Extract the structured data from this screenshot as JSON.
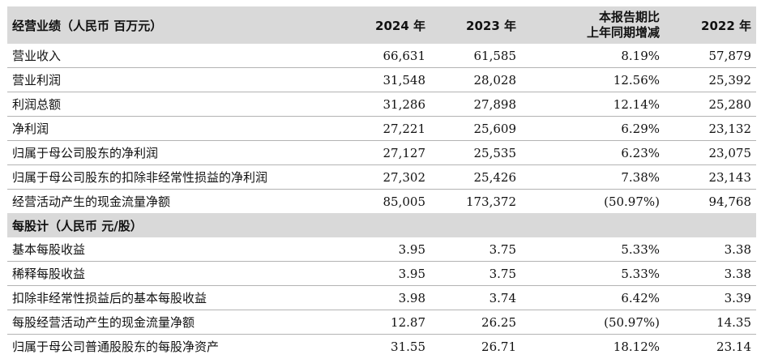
{
  "header": {
    "title": "经营业绩（人民币 百万元）",
    "col_2024": "2024 年",
    "col_2023": "2023 年",
    "col_change_line1": "本报告期比",
    "col_change_line2": "上年同期增减",
    "col_2022": "2022 年"
  },
  "operating_rows": [
    {
      "label": "营业收入",
      "v2024": "66,631",
      "v2023": "61,585",
      "change": "8.19%",
      "v2022": "57,879"
    },
    {
      "label": "营业利润",
      "v2024": "31,548",
      "v2023": "28,028",
      "change": "12.56%",
      "v2022": "25,392"
    },
    {
      "label": "利润总额",
      "v2024": "31,286",
      "v2023": "27,898",
      "change": "12.14%",
      "v2022": "25,280"
    },
    {
      "label": "净利润",
      "v2024": "27,221",
      "v2023": "25,609",
      "change": "6.29%",
      "v2022": "23,132"
    },
    {
      "label": "归属于母公司股东的净利润",
      "v2024": "27,127",
      "v2023": "25,535",
      "change": "6.23%",
      "v2022": "23,075"
    },
    {
      "label": "归属于母公司股东的扣除非经常性损益的净利润",
      "v2024": "27,302",
      "v2023": "25,426",
      "change": "7.38%",
      "v2022": "23,143"
    },
    {
      "label": "经营活动产生的现金流量净额",
      "v2024": "85,005",
      "v2023": "173,372",
      "change": "(50.97%)",
      "v2022": "94,768"
    }
  ],
  "per_share_section": {
    "title": "每股计（人民币 元/股）"
  },
  "per_share_rows": [
    {
      "label": "基本每股收益",
      "v2024": "3.95",
      "v2023": "3.75",
      "change": "5.33%",
      "v2022": "3.38"
    },
    {
      "label": "稀释每股收益",
      "v2024": "3.95",
      "v2023": "3.75",
      "change": "5.33%",
      "v2022": "3.38"
    },
    {
      "label": "扣除非经常性损益后的基本每股收益",
      "v2024": "3.98",
      "v2023": "3.74",
      "change": "6.42%",
      "v2022": "3.39"
    },
    {
      "label": "每股经营活动产生的现金流量净额",
      "v2024": "12.87",
      "v2023": "26.25",
      "change": "(50.97%)",
      "v2022": "14.35"
    },
    {
      "label": "归属于母公司普通股股东的每股净资产",
      "v2024": "31.55",
      "v2023": "26.71",
      "change": "18.12%",
      "v2022": "23.14"
    }
  ]
}
